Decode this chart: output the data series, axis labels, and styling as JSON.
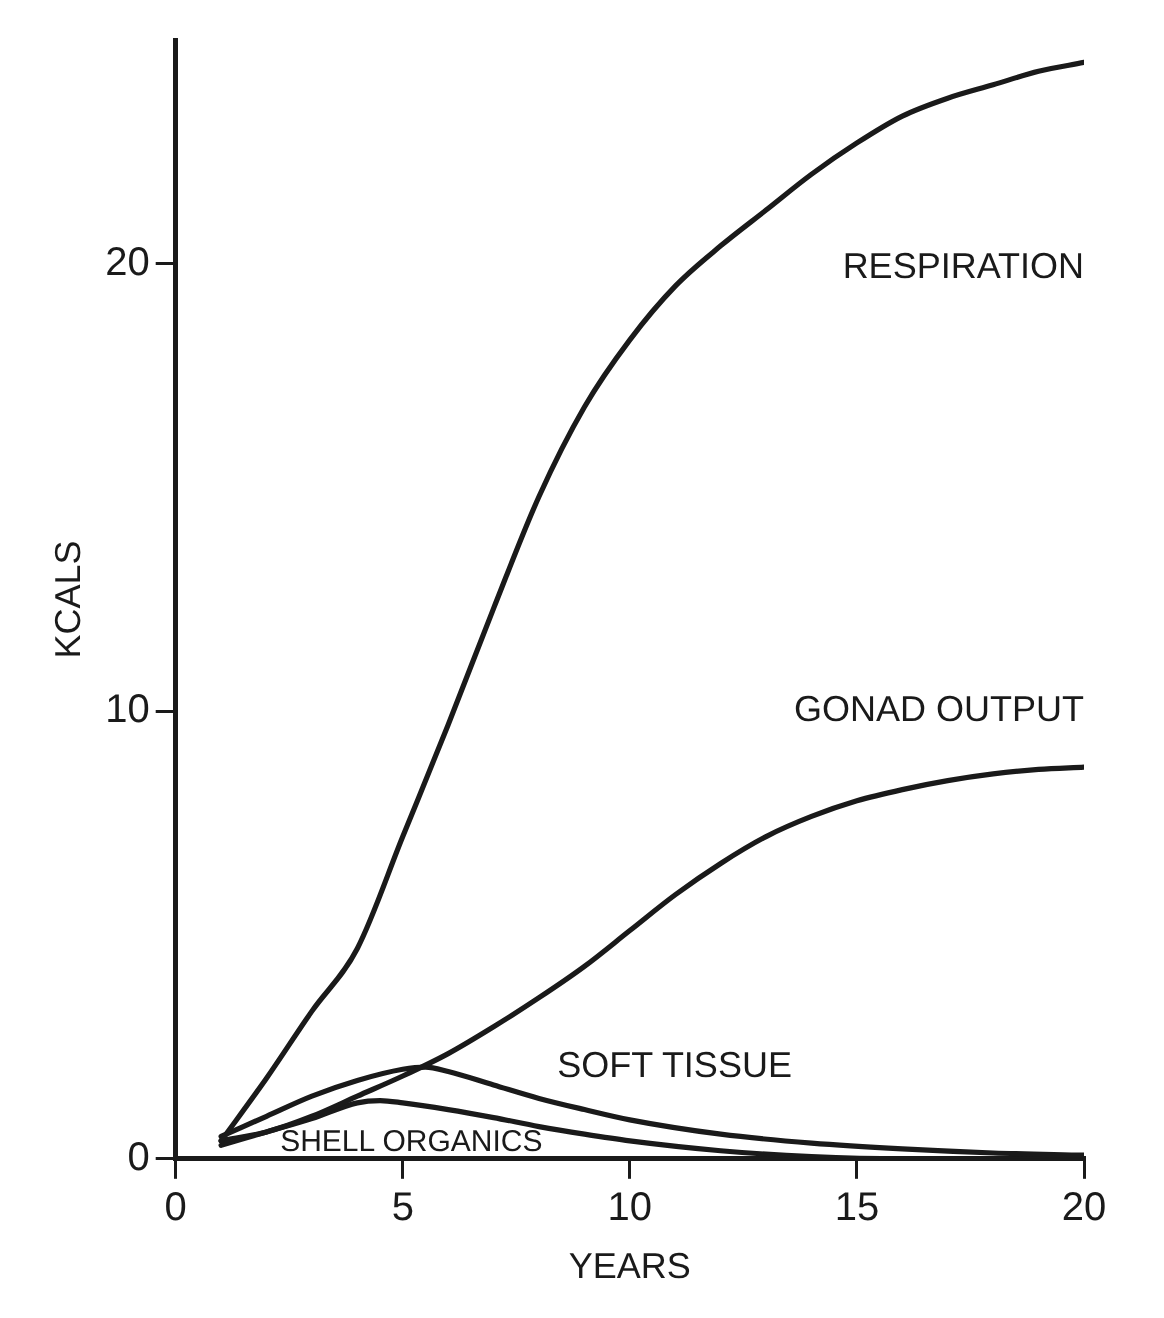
{
  "chart_data": {
    "type": "line",
    "xlabel": "YEARS",
    "ylabel": "KCALS",
    "xlim": [
      0,
      20
    ],
    "xticks": [
      0,
      5,
      10,
      15,
      20
    ],
    "ylim": [
      0,
      25
    ],
    "yticks": [
      0,
      10,
      20
    ],
    "grid": false,
    "legend": false,
    "marker": "none",
    "line_style": "solid",
    "series": [
      {
        "name": "RESPIRATION",
        "color": "#1a1a1a",
        "x": [
          1,
          2,
          3,
          4,
          5,
          6,
          7,
          8,
          9,
          10,
          11,
          12,
          13,
          14,
          15,
          16,
          17,
          18,
          19,
          20
        ],
        "values": [
          0.4,
          1.8,
          3.3,
          4.7,
          7.2,
          9.7,
          12.3,
          14.8,
          16.8,
          18.3,
          19.5,
          20.4,
          21.2,
          22.0,
          22.7,
          23.3,
          23.7,
          24.0,
          24.3,
          24.5
        ]
      },
      {
        "name": "GONAD OUTPUT",
        "color": "#1a1a1a",
        "x": [
          1,
          2,
          3,
          4,
          5,
          6,
          7,
          8,
          9,
          10,
          11,
          12,
          13,
          14,
          15,
          16,
          17,
          18,
          19,
          20
        ],
        "values": [
          0.4,
          0.6,
          0.95,
          1.4,
          1.85,
          2.35,
          2.95,
          3.6,
          4.3,
          5.1,
          5.9,
          6.6,
          7.2,
          7.65,
          8.0,
          8.25,
          8.45,
          8.6,
          8.7,
          8.75
        ]
      },
      {
        "name": "SOFT TISSUE",
        "color": "#1a1a1a",
        "x": [
          1,
          2,
          3,
          4,
          5,
          5.5,
          6,
          7,
          8,
          9,
          10,
          12,
          14,
          16,
          18,
          20
        ],
        "values": [
          0.5,
          0.95,
          1.4,
          1.75,
          2.0,
          2.05,
          1.95,
          1.65,
          1.35,
          1.1,
          0.87,
          0.55,
          0.35,
          0.22,
          0.13,
          0.08
        ]
      },
      {
        "name": "SHELL ORGANICS",
        "color": "#1a1a1a",
        "x": [
          1,
          2,
          3,
          4,
          4.5,
          5,
          6,
          7,
          8,
          9,
          10,
          12,
          14,
          16,
          20
        ],
        "values": [
          0.3,
          0.6,
          0.9,
          1.25,
          1.3,
          1.25,
          1.1,
          0.92,
          0.72,
          0.55,
          0.4,
          0.18,
          0.05,
          0,
          0
        ]
      }
    ]
  }
}
